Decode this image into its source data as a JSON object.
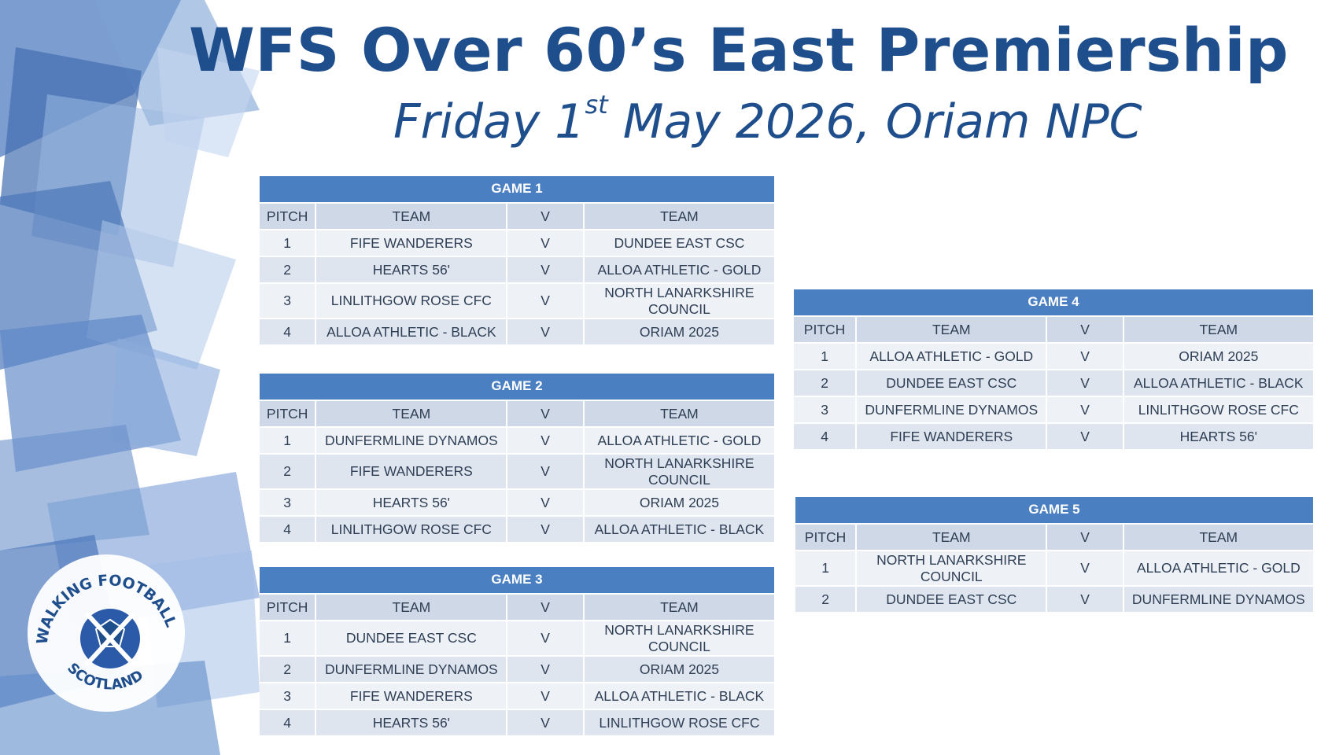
{
  "header": {
    "title": "WFS Over 60’s East Premiership",
    "subtitle_day": "Friday 1",
    "subtitle_sup": "st",
    "subtitle_rest": " May 2026, Oriam NPC"
  },
  "logo": {
    "text_top": "WALKING FOOTBALL",
    "text_bottom": "SCOTLAND"
  },
  "colors": {
    "title": "#1f4e8c",
    "table_header": "#4a7fc1",
    "row": "#dfe5ef",
    "row_alt": "#eef1f6"
  },
  "columns": {
    "pitch": "PITCH",
    "team": "TEAM",
    "v": "V"
  },
  "games": [
    {
      "title": "GAME 1",
      "rows": [
        {
          "pitch": "1",
          "home": "FIFE WANDERERS",
          "v": "V",
          "away": "DUNDEE EAST CSC"
        },
        {
          "pitch": "2",
          "home": "HEARTS 56'",
          "v": "V",
          "away": "ALLOA ATHLETIC - GOLD"
        },
        {
          "pitch": "3",
          "home": "LINLITHGOW ROSE CFC",
          "v": "V",
          "away": "NORTH LANARKSHIRE COUNCIL"
        },
        {
          "pitch": "4",
          "home": "ALLOA ATHLETIC - BLACK",
          "v": "V",
          "away": "ORIAM 2025"
        }
      ]
    },
    {
      "title": "GAME 2",
      "rows": [
        {
          "pitch": "1",
          "home": "DUNFERMLINE DYNAMOS",
          "v": "V",
          "away": "ALLOA ATHLETIC - GOLD"
        },
        {
          "pitch": "2",
          "home": "FIFE WANDERERS",
          "v": "V",
          "away": "NORTH LANARKSHIRE COUNCIL"
        },
        {
          "pitch": "3",
          "home": "HEARTS 56'",
          "v": "V",
          "away": "ORIAM 2025"
        },
        {
          "pitch": "4",
          "home": "LINLITHGOW ROSE CFC",
          "v": "V",
          "away": "ALLOA ATHLETIC - BLACK"
        }
      ]
    },
    {
      "title": "GAME 3",
      "rows": [
        {
          "pitch": "1",
          "home": "DUNDEE EAST CSC",
          "v": "V",
          "away": "NORTH LANARKSHIRE COUNCIL"
        },
        {
          "pitch": "2",
          "home": "DUNFERMLINE DYNAMOS",
          "v": "V",
          "away": "ORIAM 2025"
        },
        {
          "pitch": "3",
          "home": "FIFE WANDERERS",
          "v": "V",
          "away": "ALLOA ATHLETIC - BLACK"
        },
        {
          "pitch": "4",
          "home": "HEARTS 56'",
          "v": "V",
          "away": "LINLITHGOW ROSE CFC"
        }
      ]
    },
    {
      "title": "GAME 4",
      "rows": [
        {
          "pitch": "1",
          "home": "ALLOA ATHLETIC - GOLD",
          "v": "V",
          "away": "ORIAM 2025"
        },
        {
          "pitch": "2",
          "home": "DUNDEE EAST CSC",
          "v": "V",
          "away": "ALLOA ATHLETIC - BLACK"
        },
        {
          "pitch": "3",
          "home": "DUNFERMLINE DYNAMOS",
          "v": "V",
          "away": "LINLITHGOW ROSE CFC"
        },
        {
          "pitch": "4",
          "home": "FIFE WANDERERS",
          "v": "V",
          "away": "HEARTS 56'"
        }
      ]
    },
    {
      "title": "GAME 5",
      "rows": [
        {
          "pitch": "1",
          "home": "NORTH LANARKSHIRE COUNCIL",
          "v": "V",
          "away": "ALLOA ATHLETIC - GOLD"
        },
        {
          "pitch": "2",
          "home": "DUNDEE EAST CSC",
          "v": "V",
          "away": "DUNFERMLINE DYNAMOS"
        }
      ]
    }
  ]
}
